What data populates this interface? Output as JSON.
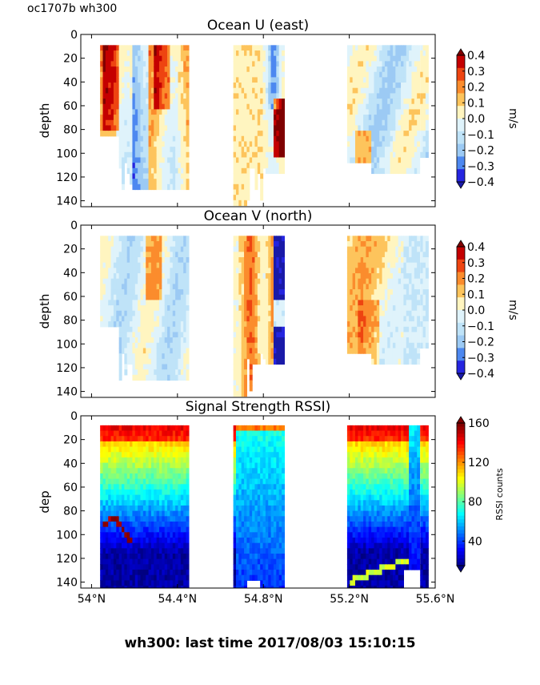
{
  "header": {
    "corner_label": "oc1707b wh300"
  },
  "footer": {
    "caption": "wh300: last time 2017/08/03 15:10:15"
  },
  "chart_data": [
    {
      "type": "heatmap",
      "title": "Ocean U (east)",
      "ylabel": "depth",
      "ylim": [
        145,
        0
      ],
      "yticks": [
        0,
        20,
        40,
        60,
        80,
        100,
        120,
        140
      ],
      "xlim": [
        53.95,
        55.6
      ],
      "xticks": [
        54.0,
        54.4,
        54.8,
        55.2,
        55.6
      ],
      "xtick_labels": [
        "54°N",
        "54.4°N",
        "54.8°N",
        "55.2°N",
        "55.6°N"
      ],
      "show_xtick_labels": false,
      "colorbar": {
        "label": "m/s",
        "ticks": [
          0.4,
          0.3,
          0.2,
          0.1,
          0.0,
          -0.1,
          -0.2,
          -0.3,
          -0.4
        ],
        "tick_labels": [
          "0.4",
          "0.3",
          "0.2",
          "0.1",
          "0.0",
          "−0.1",
          "−0.2",
          "−0.3",
          "−0.4"
        ],
        "colors": [
          "#7f0000",
          "#c40000",
          "#ee4411",
          "#fb8c2d",
          "#fdc45c",
          "#fff5c0",
          "#dff3fb",
          "#bfe3f8",
          "#9ccaf4",
          "#4d88f0",
          "#2525e0",
          "#1a1aa8"
        ]
      }
    },
    {
      "type": "heatmap",
      "title": "Ocean V (north)",
      "ylabel": "depth",
      "ylim": [
        145,
        0
      ],
      "yticks": [
        0,
        20,
        40,
        60,
        80,
        100,
        120,
        140
      ],
      "xlim": [
        53.95,
        55.6
      ],
      "xticks": [
        54.0,
        54.4,
        54.8,
        55.2,
        55.6
      ],
      "xtick_labels": [
        "54°N",
        "54.4°N",
        "54.8°N",
        "55.2°N",
        "55.6°N"
      ],
      "show_xtick_labels": false,
      "colorbar": {
        "label": "m/s",
        "ticks": [
          0.4,
          0.3,
          0.2,
          0.1,
          0.0,
          -0.1,
          -0.2,
          -0.3,
          -0.4
        ],
        "tick_labels": [
          "0.4",
          "0.3",
          "0.2",
          "0.1",
          "0.0",
          "−0.1",
          "−0.2",
          "−0.3",
          "−0.4"
        ],
        "colors": [
          "#7f0000",
          "#c40000",
          "#ee4411",
          "#fb8c2d",
          "#fdc45c",
          "#fff5c0",
          "#dff3fb",
          "#bfe3f8",
          "#9ccaf4",
          "#4d88f0",
          "#2525e0",
          "#1a1aa8"
        ]
      }
    },
    {
      "type": "heatmap",
      "title": "Signal Strength RSSI)",
      "ylabel": "dep",
      "ylim": [
        145,
        0
      ],
      "yticks": [
        0,
        20,
        40,
        60,
        80,
        100,
        120,
        140
      ],
      "xlim": [
        53.95,
        55.6
      ],
      "xticks": [
        54.0,
        54.4,
        54.8,
        55.2,
        55.6
      ],
      "xtick_labels": [
        "54°N",
        "54.4°N",
        "54.8°N",
        "55.2°N",
        "55.6°N"
      ],
      "show_xtick_labels": true,
      "colorbar": {
        "label": "RSSI counts",
        "ticks": [
          160,
          120,
          80,
          40
        ],
        "tick_labels": [
          "160",
          "120",
          "80",
          "40"
        ],
        "range": [
          15,
          160
        ],
        "colors": [
          "#00007f",
          "#0000ff",
          "#0080ff",
          "#00e5ff",
          "#7fff7f",
          "#ffe500",
          "#ff7700",
          "#ff0000",
          "#7f0000"
        ]
      }
    }
  ]
}
